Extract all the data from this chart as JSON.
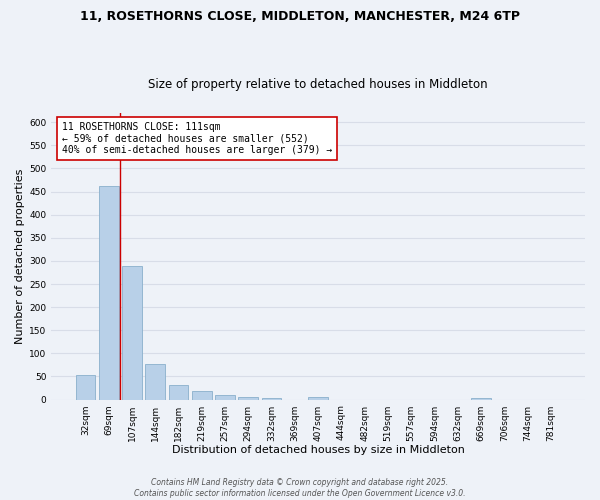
{
  "title": "11, ROSETHORNS CLOSE, MIDDLETON, MANCHESTER, M24 6TP",
  "subtitle": "Size of property relative to detached houses in Middleton",
  "xlabel": "Distribution of detached houses by size in Middleton",
  "ylabel": "Number of detached properties",
  "bar_color": "#b8d0e8",
  "bar_edge_color": "#8ab0cc",
  "categories": [
    "32sqm",
    "69sqm",
    "107sqm",
    "144sqm",
    "182sqm",
    "219sqm",
    "257sqm",
    "294sqm",
    "332sqm",
    "369sqm",
    "407sqm",
    "444sqm",
    "482sqm",
    "519sqm",
    "557sqm",
    "594sqm",
    "632sqm",
    "669sqm",
    "706sqm",
    "744sqm",
    "781sqm"
  ],
  "values": [
    53,
    463,
    290,
    76,
    32,
    18,
    10,
    5,
    4,
    0,
    5,
    0,
    0,
    0,
    0,
    0,
    0,
    4,
    0,
    0,
    0
  ],
  "ylim": [
    0,
    620
  ],
  "yticks": [
    0,
    50,
    100,
    150,
    200,
    250,
    300,
    350,
    400,
    450,
    500,
    550,
    600
  ],
  "vline_x": 1.5,
  "vline_color": "#cc0000",
  "annotation_title": "11 ROSETHORNS CLOSE: 111sqm",
  "annotation_line1": "← 59% of detached houses are smaller (552)",
  "annotation_line2": "40% of semi-detached houses are larger (379) →",
  "annotation_box_color": "#ffffff",
  "annotation_box_edge": "#cc0000",
  "footer1": "Contains HM Land Registry data © Crown copyright and database right 2025.",
  "footer2": "Contains public sector information licensed under the Open Government Licence v3.0.",
  "background_color": "#eef2f8",
  "grid_color": "#d8dde8",
  "title_fontsize": 9,
  "subtitle_fontsize": 8.5,
  "axis_label_fontsize": 8,
  "tick_fontsize": 6.5,
  "annotation_fontsize": 7,
  "footer_fontsize": 5.5
}
